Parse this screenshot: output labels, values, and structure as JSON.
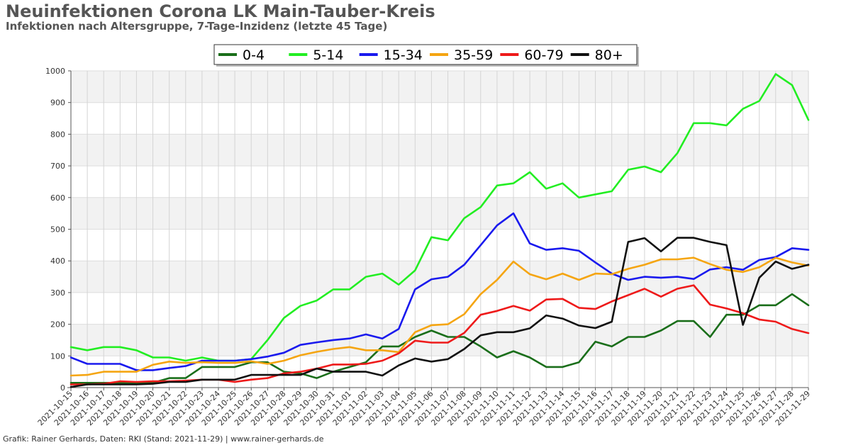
{
  "title": "Neuinfektionen Corona LK Main-Tauber-Kreis",
  "subtitle": "Infektionen nach Altersgruppe, 7-Tage-Inzidenz (letzte 45 Tage)",
  "footer": "Grafik: Rainer Gerhards, Daten: RKI (Stand: 2021-11-29) | www.rainer-gerhards.de",
  "chart_data": {
    "type": "line",
    "title": "Neuinfektionen Corona LK Main-Tauber-Kreis",
    "subtitle": "Infektionen nach Altersgruppe, 7-Tage-Inzidenz (letzte 45 Tage)",
    "xlabel": "",
    "ylabel": "",
    "ylim": [
      0,
      1000
    ],
    "yticks": [
      0,
      100,
      200,
      300,
      400,
      500,
      600,
      700,
      800,
      900,
      1000
    ],
    "grid": true,
    "legend_position": "top-center",
    "x": [
      "2021-10-15",
      "2021-10-16",
      "2021-10-17",
      "2021-10-18",
      "2021-10-19",
      "2021-10-20",
      "2021-10-21",
      "2021-10-22",
      "2021-10-23",
      "2021-10-24",
      "2021-10-25",
      "2021-10-26",
      "2021-10-27",
      "2021-10-28",
      "2021-10-29",
      "2021-10-30",
      "2021-10-31",
      "2021-11-01",
      "2021-11-02",
      "2021-11-03",
      "2021-11-04",
      "2021-11-05",
      "2021-11-06",
      "2021-11-07",
      "2021-11-08",
      "2021-11-09",
      "2021-11-10",
      "2021-11-11",
      "2021-11-12",
      "2021-11-13",
      "2021-11-14",
      "2021-11-15",
      "2021-11-16",
      "2021-11-17",
      "2021-11-18",
      "2021-11-19",
      "2021-11-20",
      "2021-11-21",
      "2021-11-22",
      "2021-11-23",
      "2021-11-24",
      "2021-11-25",
      "2021-11-26",
      "2021-11-27",
      "2021-11-28",
      "2021-11-29"
    ],
    "series": [
      {
        "name": "0-4",
        "color": "#1a6e1a",
        "values": [
          15,
          15,
          15,
          15,
          15,
          15,
          30,
          30,
          65,
          65,
          65,
          80,
          80,
          50,
          45,
          30,
          50,
          65,
          80,
          130,
          130,
          160,
          180,
          160,
          160,
          130,
          95,
          115,
          95,
          65,
          65,
          80,
          145,
          130,
          160,
          160,
          180,
          210,
          210,
          160,
          230,
          230,
          260,
          260,
          295,
          260
        ]
      },
      {
        "name": "5-14",
        "color": "#22ee22",
        "values": [
          128,
          118,
          128,
          128,
          118,
          95,
          95,
          85,
          95,
          85,
          85,
          90,
          150,
          220,
          258,
          275,
          310,
          310,
          350,
          360,
          325,
          370,
          475,
          465,
          535,
          570,
          638,
          645,
          680,
          628,
          645,
          600,
          610,
          620,
          688,
          698,
          680,
          740,
          835,
          835,
          828,
          880,
          905,
          990,
          955,
          845
        ]
      },
      {
        "name": "15-34",
        "color": "#1a1aee",
        "values": [
          95,
          75,
          75,
          75,
          55,
          55,
          62,
          68,
          85,
          85,
          85,
          90,
          98,
          110,
          135,
          143,
          150,
          155,
          168,
          155,
          185,
          310,
          342,
          350,
          388,
          450,
          512,
          550,
          455,
          435,
          440,
          432,
          395,
          360,
          340,
          350,
          347,
          350,
          343,
          373,
          380,
          372,
          403,
          412,
          440,
          435
        ]
      },
      {
        "name": "35-59",
        "color": "#f5a511",
        "values": [
          38,
          40,
          50,
          50,
          50,
          72,
          82,
          78,
          80,
          78,
          78,
          83,
          75,
          85,
          102,
          113,
          122,
          128,
          118,
          118,
          112,
          175,
          197,
          200,
          232,
          295,
          340,
          398,
          358,
          342,
          360,
          340,
          360,
          358,
          375,
          388,
          405,
          405,
          410,
          390,
          372,
          365,
          380,
          410,
          395,
          385
        ]
      },
      {
        "name": "60-79",
        "color": "#ee1a1a",
        "values": [
          10,
          10,
          12,
          20,
          18,
          20,
          20,
          22,
          25,
          25,
          18,
          25,
          30,
          45,
          50,
          60,
          73,
          73,
          75,
          85,
          108,
          148,
          142,
          142,
          173,
          230,
          242,
          258,
          243,
          278,
          280,
          252,
          248,
          272,
          292,
          312,
          287,
          312,
          323,
          262,
          250,
          235,
          215,
          208,
          185,
          172
        ]
      },
      {
        "name": "80+",
        "color": "#111111",
        "values": [
          2,
          10,
          10,
          10,
          10,
          12,
          18,
          18,
          25,
          25,
          25,
          40,
          40,
          40,
          40,
          60,
          50,
          50,
          50,
          38,
          70,
          92,
          82,
          90,
          122,
          165,
          175,
          175,
          187,
          228,
          218,
          196,
          188,
          208,
          460,
          472,
          430,
          473,
          473,
          460,
          450,
          198,
          347,
          398,
          375,
          388
        ]
      }
    ]
  }
}
